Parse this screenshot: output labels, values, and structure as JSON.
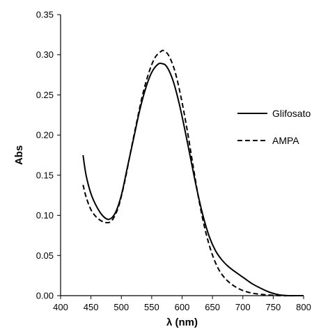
{
  "chart_data": {
    "type": "line",
    "title": "",
    "xlabel": "λ (nm)",
    "ylabel": "Abs",
    "xlim": [
      400,
      800
    ],
    "ylim": [
      0,
      0.35
    ],
    "x_ticks": [
      400,
      450,
      500,
      550,
      600,
      650,
      700,
      750,
      800
    ],
    "y_ticks": [
      0.0,
      0.05,
      0.1,
      0.15,
      0.2,
      0.25,
      0.3,
      0.35
    ],
    "y_tick_labels": [
      "0.00",
      "0.05",
      "0.10",
      "0.15",
      "0.20",
      "0.25",
      "0.30",
      "0.35"
    ],
    "grid": false,
    "legend_position": "right",
    "series": [
      {
        "name": "Glifosato",
        "line_style": "solid",
        "color": "#000000",
        "points": [
          [
            437,
            0.175
          ],
          [
            442,
            0.15
          ],
          [
            450,
            0.127
          ],
          [
            460,
            0.11
          ],
          [
            470,
            0.099
          ],
          [
            480,
            0.095
          ],
          [
            490,
            0.103
          ],
          [
            500,
            0.125
          ],
          [
            510,
            0.16
          ],
          [
            520,
            0.195
          ],
          [
            530,
            0.23
          ],
          [
            540,
            0.258
          ],
          [
            550,
            0.278
          ],
          [
            560,
            0.288
          ],
          [
            567,
            0.289
          ],
          [
            575,
            0.285
          ],
          [
            585,
            0.268
          ],
          [
            595,
            0.24
          ],
          [
            605,
            0.205
          ],
          [
            615,
            0.167
          ],
          [
            625,
            0.13
          ],
          [
            635,
            0.098
          ],
          [
            645,
            0.073
          ],
          [
            655,
            0.056
          ],
          [
            665,
            0.045
          ],
          [
            675,
            0.037
          ],
          [
            685,
            0.031
          ],
          [
            700,
            0.023
          ],
          [
            715,
            0.015
          ],
          [
            730,
            0.009
          ],
          [
            745,
            0.004
          ],
          [
            760,
            0.001
          ],
          [
            775,
            0.0
          ],
          [
            790,
            0.0
          ],
          [
            800,
            0.0
          ]
        ]
      },
      {
        "name": "AMPA",
        "line_style": "dashed",
        "color": "#000000",
        "points": [
          [
            437,
            0.138
          ],
          [
            442,
            0.123
          ],
          [
            450,
            0.107
          ],
          [
            460,
            0.097
          ],
          [
            470,
            0.092
          ],
          [
            478,
            0.091
          ],
          [
            485,
            0.094
          ],
          [
            495,
            0.11
          ],
          [
            505,
            0.14
          ],
          [
            515,
            0.178
          ],
          [
            525,
            0.215
          ],
          [
            535,
            0.25
          ],
          [
            545,
            0.277
          ],
          [
            555,
            0.296
          ],
          [
            565,
            0.304
          ],
          [
            570,
            0.305
          ],
          [
            578,
            0.299
          ],
          [
            588,
            0.28
          ],
          [
            598,
            0.248
          ],
          [
            608,
            0.208
          ],
          [
            618,
            0.162
          ],
          [
            628,
            0.118
          ],
          [
            638,
            0.082
          ],
          [
            648,
            0.055
          ],
          [
            658,
            0.036
          ],
          [
            668,
            0.024
          ],
          [
            680,
            0.015
          ],
          [
            695,
            0.008
          ],
          [
            710,
            0.004
          ],
          [
            725,
            0.002
          ],
          [
            740,
            0.001
          ],
          [
            760,
            0.0
          ],
          [
            780,
            0.0
          ],
          [
            800,
            0.0
          ]
        ]
      }
    ]
  }
}
